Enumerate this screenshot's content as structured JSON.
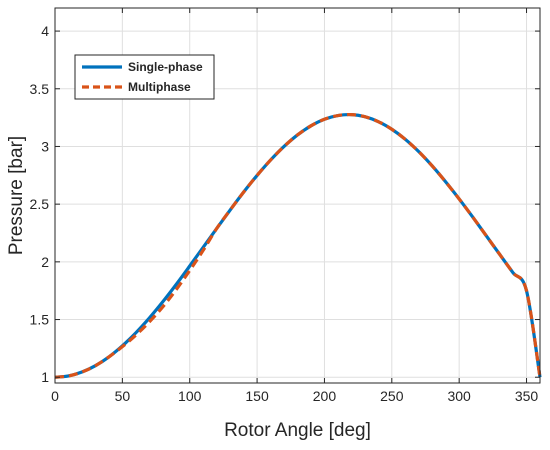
{
  "chart_data": {
    "type": "line",
    "title": "",
    "xlabel": "Rotor Angle [deg]",
    "ylabel": "Pressure [bar]",
    "xlim": [
      0,
      360
    ],
    "ylim": [
      0.95,
      4.2
    ],
    "xticks": [
      0,
      50,
      100,
      150,
      200,
      250,
      300,
      350
    ],
    "yticks": [
      1,
      1.5,
      2,
      2.5,
      3,
      3.5,
      4
    ],
    "xtick_labels": [
      "0",
      "50",
      "100",
      "150",
      "200",
      "250",
      "300",
      "350"
    ],
    "ytick_labels": [
      "1",
      "1.5",
      "2",
      "2.5",
      "3",
      "3.5",
      "4"
    ],
    "grid": true,
    "legend_position": "top-left",
    "series": [
      {
        "name": "Single-phase",
        "style": "solid",
        "color": "#0072BD",
        "x": [
          0,
          10,
          20,
          30,
          40,
          50,
          60,
          70,
          80,
          90,
          100,
          110,
          120,
          130,
          140,
          150,
          160,
          170,
          180,
          190,
          200,
          210,
          220,
          230,
          240,
          250,
          260,
          270,
          280,
          290,
          300,
          310,
          320,
          330,
          340,
          350,
          360
        ],
        "y": [
          1.0,
          1.011,
          1.045,
          1.1,
          1.176,
          1.272,
          1.385,
          1.513,
          1.654,
          1.805,
          1.964,
          2.126,
          2.289,
          2.449,
          2.604,
          2.749,
          2.882,
          3.0,
          3.1,
          3.179,
          3.236,
          3.268,
          3.276,
          3.258,
          3.215,
          3.149,
          3.062,
          2.955,
          2.831,
          2.693,
          2.545,
          2.389,
          2.228,
          2.066,
          1.905,
          1.749,
          1.0
        ]
      },
      {
        "name": "Multiphase",
        "style": "dashed",
        "color": "#D95319",
        "x": [
          0,
          10,
          20,
          30,
          40,
          50,
          60,
          70,
          80,
          90,
          100,
          110,
          120,
          130,
          140,
          150,
          160,
          170,
          180,
          190,
          200,
          210,
          220,
          230,
          240,
          250,
          260,
          270,
          280,
          290,
          300,
          310,
          320,
          330,
          340,
          350,
          360
        ],
        "y": [
          1.0,
          1.011,
          1.045,
          1.1,
          1.176,
          1.265,
          1.365,
          1.48,
          1.61,
          1.76,
          1.925,
          2.1,
          2.289,
          2.449,
          2.604,
          2.749,
          2.882,
          3.0,
          3.1,
          3.179,
          3.236,
          3.268,
          3.276,
          3.258,
          3.215,
          3.149,
          3.062,
          2.955,
          2.831,
          2.693,
          2.545,
          2.389,
          2.228,
          2.066,
          1.905,
          1.749,
          1.0
        ]
      }
    ]
  },
  "colors": {
    "single_phase": "#0072BD",
    "multiphase": "#D95319",
    "grid": "#DFDFDF",
    "axis": "#262626"
  }
}
